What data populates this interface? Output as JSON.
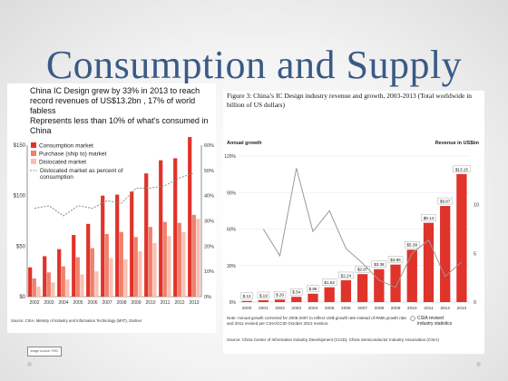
{
  "slide": {
    "title": "Consumption and Supply",
    "caption_line1": "China IC Design grew by 33% in 2013 to reach record revenues  of US$13.2bn , 17% of world fabless",
    "caption_line2": "Represents less than 10% of what’s consumed in China",
    "small_box": "Image source: FSIC"
  },
  "left_chart_text": {
    "source": "Source: CSIA, Ministry of Industry and Information Technology (MIIT), Gartner"
  },
  "right_chart_text": {
    "figure_caption": "Figure 3: China’s IC Design industry revenue and growth, 2003-2013 (Total worldwide in billion of US dollars)",
    "left_axis_title": "Annual growth",
    "right_axis_title": "Revenue in US$bn",
    "note": "Note: Annual growth corrected for 2005-2007 to reflect US$ growth rate instead of RMB growth rate and 2011 revised per CSIA/CCID October 2012 revision.",
    "legend_revised": "CSIA revised industry statistics",
    "source": "Source: China Center of Information Industry Development (CCID), China Semiconductor Industry Association (CSIA)"
  },
  "chart_data": [
    {
      "type": "bar",
      "categories": [
        "2002",
        "2003",
        "2004",
        "2005",
        "2006",
        "2007",
        "2008",
        "2009",
        "2010",
        "2011",
        "2012",
        "2013"
      ],
      "series": [
        {
          "name": "Consumption market",
          "values": [
            29,
            40,
            47,
            61,
            72,
            100,
            101,
            104,
            122,
            135,
            137,
            158
          ],
          "color": "#e0332a"
        },
        {
          "name": "Purchase (ship to) market",
          "values": [
            18,
            24,
            30,
            39,
            48,
            62,
            64,
            59,
            69,
            74,
            73,
            81
          ],
          "color": "#f0806c"
        },
        {
          "name": "Dislocated market",
          "values": [
            10,
            14,
            17,
            22,
            25,
            38,
            37,
            45,
            53,
            60,
            64,
            77
          ],
          "color": "#f8c0b2"
        },
        {
          "name": "Dislocated market as percent of consumption",
          "type": "line",
          "axis": "right",
          "values": [
            35,
            36,
            32,
            36,
            35,
            38,
            37,
            43,
            43,
            44,
            47,
            49
          ],
          "color": "#888888",
          "dashed": true
        }
      ],
      "left_ticks": [
        "$0",
        "$50",
        "$100",
        "$150"
      ],
      "right_ticks": [
        "0%",
        "10%",
        "20%",
        "30%",
        "40%",
        "50%",
        "60%"
      ],
      "ylim": [
        0,
        150
      ],
      "y2lim": [
        0,
        60
      ],
      "legend": "top-left"
    },
    {
      "type": "bar",
      "categories": [
        "2000",
        "2001",
        "2002",
        "2003",
        "2004",
        "2005",
        "2006",
        "2007",
        "2008",
        "2009",
        "2010",
        "2011",
        "2012",
        "2013"
      ],
      "series": [
        {
          "name": "Revenue",
          "axis": "right",
          "values": [
            0.12,
            0.19,
            0.26,
            0.54,
            0.86,
            1.52,
            2.24,
            2.87,
            3.38,
            3.85,
            5.38,
            8.14,
            9.87,
            13.15
          ],
          "labels": [
            "$.12",
            "$.19",
            "$.26",
            "$.54",
            "$.86",
            "$1.52",
            "$2.24",
            "$2.87",
            "$3.38",
            "$3.85",
            "$5.38",
            "$8.14",
            "$9.87",
            "$13.15"
          ],
          "color": "#e0332a"
        },
        {
          "name": "Annual growth",
          "type": "line",
          "axis": "left",
          "values": [
            null,
            60,
            38,
            110,
            58,
            75,
            44,
            32,
            18,
            12,
            40,
            51,
            21,
            33
          ],
          "color": "#999999"
        }
      ],
      "left_ticks": [
        "0%",
        "30%",
        "60%",
        "90%",
        "120%"
      ],
      "right_ticks": [
        "0",
        "5",
        "10"
      ],
      "ylim": [
        0,
        120
      ],
      "y2lim": [
        0,
        15
      ],
      "legend": "bottom-right"
    }
  ]
}
